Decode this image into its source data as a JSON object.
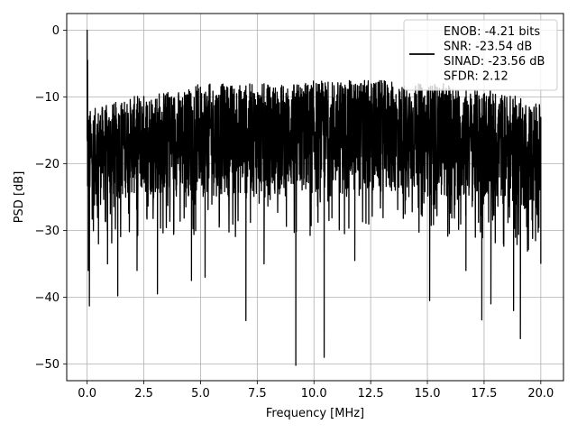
{
  "chart_data": {
    "type": "line",
    "title": "",
    "xlabel": "Frequency [MHz]",
    "ylabel": "PSD [dB]",
    "xlim": [
      -0.9,
      21.0
    ],
    "ylim": [
      -52.5,
      2.5
    ],
    "x_ticks": [
      0.0,
      2.5,
      5.0,
      7.5,
      10.0,
      12.5,
      15.0,
      17.5,
      20.0
    ],
    "x_tick_labels": [
      "0.0",
      "2.5",
      "5.0",
      "7.5",
      "10.0",
      "12.5",
      "15.0",
      "17.5",
      "20.0"
    ],
    "y_ticks": [
      0,
      -10,
      -20,
      -30,
      -40,
      -50
    ],
    "y_tick_labels": [
      "0",
      "−10",
      "−20",
      "−30",
      "−40",
      "−50"
    ],
    "grid": true,
    "legend_position": "top-right",
    "series": [
      {
        "name": "ENOB: -4.21 bits\nSNR: -23.54 dB\nSINAD: -23.56 dB\nSFDR: 2.12",
        "legend_lines": [
          "ENOB: -4.21 bits",
          "SNR: -23.54 dB",
          "SINAD: -23.56 dB",
          "SFDR: 2.12"
        ],
        "color": "#000000",
        "x_range": [
          0.0,
          20.0
        ],
        "envelope_x": [
          0,
          1,
          2,
          3,
          4,
          5,
          6,
          7,
          8,
          9,
          10,
          11,
          12,
          13,
          14,
          15,
          16,
          17,
          18,
          19,
          20
        ],
        "envelope_upper": [
          -12,
          -11,
          -10,
          -9,
          -9,
          -8,
          -8,
          -8,
          -8,
          -8,
          -7.5,
          -7.5,
          -7.5,
          -7.5,
          -8,
          -8,
          -8,
          -9,
          -9,
          -10,
          -11
        ],
        "envelope_lower": [
          -27,
          -26,
          -25,
          -25,
          -25,
          -25,
          -25,
          -25,
          -25,
          -25,
          -25,
          -25,
          -25,
          -25,
          -25,
          -25,
          -25,
          -26,
          -26,
          -27,
          -28
        ],
        "points": [
          {
            "x": 0.0,
            "y": 0.0
          },
          {
            "x": 0.02,
            "y": -4.5
          },
          {
            "x": 0.05,
            "y": -36.0
          },
          {
            "x": 0.1,
            "y": -41.3
          },
          {
            "x": 0.5,
            "y": -32.0
          },
          {
            "x": 0.9,
            "y": -35.0
          },
          {
            "x": 1.35,
            "y": -39.8
          },
          {
            "x": 2.2,
            "y": -36.0
          },
          {
            "x": 3.1,
            "y": -39.5
          },
          {
            "x": 4.6,
            "y": -37.5
          },
          {
            "x": 5.2,
            "y": -37.0
          },
          {
            "x": 7.0,
            "y": -43.5
          },
          {
            "x": 7.8,
            "y": -35.0
          },
          {
            "x": 9.2,
            "y": -50.2
          },
          {
            "x": 10.45,
            "y": -49.0
          },
          {
            "x": 11.8,
            "y": -34.5
          },
          {
            "x": 15.1,
            "y": -40.5
          },
          {
            "x": 16.7,
            "y": -36.0
          },
          {
            "x": 17.4,
            "y": -43.4
          },
          {
            "x": 17.8,
            "y": -41.0
          },
          {
            "x": 18.8,
            "y": -42.0
          },
          {
            "x": 19.1,
            "y": -46.2
          },
          {
            "x": 20.0,
            "y": -35.0
          }
        ]
      }
    ]
  }
}
